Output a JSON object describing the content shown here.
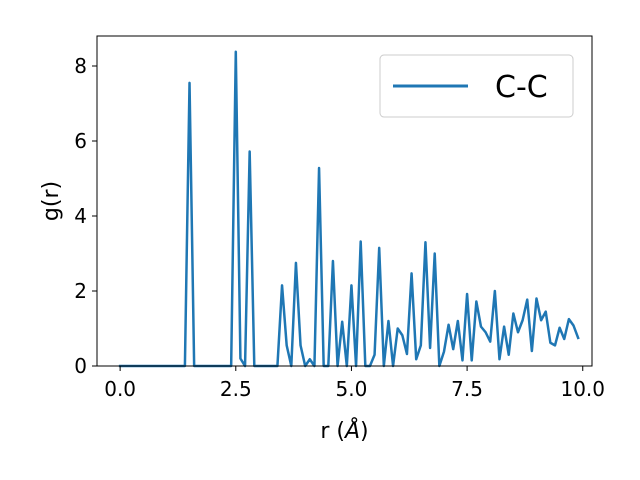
{
  "chart_data": {
    "type": "line",
    "xlabel_prefix": "r (",
    "xlabel_unit": "Å",
    "xlabel_suffix": ")",
    "ylabel": "g(r)",
    "xlim": [
      -0.5,
      10.2
    ],
    "ylim": [
      0,
      8.8
    ],
    "xticks": [
      0.0,
      2.5,
      5.0,
      7.5,
      10.0
    ],
    "xtick_labels": [
      "0.0",
      "2.5",
      "5.0",
      "7.5",
      "10.0"
    ],
    "yticks": [
      0,
      2,
      4,
      6,
      8
    ],
    "ytick_labels": [
      "0",
      "2",
      "4",
      "6",
      "8"
    ],
    "grid": false,
    "legend_position": "top-right",
    "series": [
      {
        "name": "C-C",
        "color": "#1f77b4",
        "x": [
          0.0,
          0.1,
          0.2,
          0.3,
          0.4,
          0.5,
          0.6,
          0.7,
          0.8,
          0.9,
          1.0,
          1.1,
          1.2,
          1.3,
          1.4,
          1.5,
          1.6,
          1.7,
          1.8,
          1.9,
          2.0,
          2.1,
          2.2,
          2.3,
          2.4,
          2.5,
          2.6,
          2.7,
          2.8,
          2.9,
          3.0,
          3.1,
          3.2,
          3.3,
          3.4,
          3.5,
          3.6,
          3.7,
          3.8,
          3.9,
          4.0,
          4.1,
          4.2,
          4.3,
          4.4,
          4.5,
          4.6,
          4.7,
          4.8,
          4.9,
          5.0,
          5.1,
          5.2,
          5.3,
          5.4,
          5.5,
          5.6,
          5.7,
          5.8,
          5.9,
          6.0,
          6.1,
          6.2,
          6.3,
          6.4,
          6.5,
          6.6,
          6.7,
          6.8,
          6.9,
          7.0,
          7.1,
          7.2,
          7.3,
          7.4,
          7.5,
          7.6,
          7.7,
          7.8,
          7.9,
          8.0,
          8.1,
          8.2,
          8.3,
          8.4,
          8.5,
          8.6,
          8.7,
          8.8,
          8.9,
          9.0,
          9.1,
          9.2,
          9.3,
          9.4,
          9.5,
          9.6,
          9.7,
          9.8,
          9.9
        ],
        "y": [
          0,
          0,
          0,
          0,
          0,
          0,
          0,
          0,
          0,
          0,
          0,
          0,
          0,
          0,
          0,
          7.55,
          0,
          0,
          0,
          0,
          0,
          0,
          0,
          0,
          0,
          8.38,
          0.2,
          0,
          5.72,
          0,
          0,
          0,
          0,
          0,
          0,
          2.15,
          0.55,
          0,
          2.75,
          0.55,
          0,
          0.18,
          0,
          5.28,
          0,
          0,
          2.8,
          0,
          1.18,
          0,
          2.15,
          0,
          3.32,
          0,
          0,
          0.3,
          3.15,
          0,
          1.2,
          0,
          1.0,
          0.82,
          0.32,
          2.47,
          0.18,
          0.55,
          3.3,
          0.48,
          3.0,
          0,
          0.38,
          1.1,
          0.45,
          1.2,
          0.15,
          1.92,
          0.15,
          1.72,
          1.05,
          0.9,
          0.65,
          2.0,
          0.18,
          1.05,
          0.3,
          1.4,
          0.9,
          1.22,
          1.77,
          0.4,
          1.8,
          1.22,
          1.45,
          0.62,
          0.55,
          1.02,
          0.72,
          1.25,
          1.08,
          0.75
        ]
      }
    ]
  }
}
